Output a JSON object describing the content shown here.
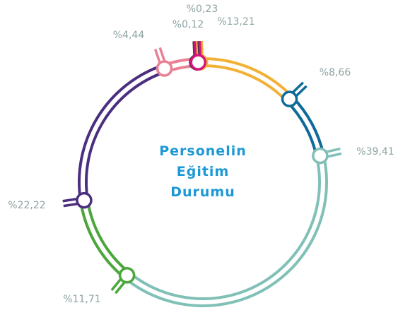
{
  "chart_data": {
    "type": "ring",
    "title": "Personelin Eğitim Durumu",
    "categories": [
      null,
      null,
      null,
      null,
      null,
      null,
      null,
      null
    ],
    "values": [
      13.21,
      8.66,
      39.41,
      11.71,
      22.22,
      4.44,
      0.12,
      0.23
    ],
    "value_labels": [
      "%13,21",
      "%8,66",
      "%39,41",
      "%11,71",
      "%22,22",
      "%4,44",
      "%0,12",
      "%0,23"
    ],
    "colors": [
      "#f2b134",
      "#0f6a9a",
      "#80c0b6",
      "#4ba63b",
      "#4b2e80",
      "#ea8094",
      "#3b3b45",
      "#d6137b"
    ]
  }
}
